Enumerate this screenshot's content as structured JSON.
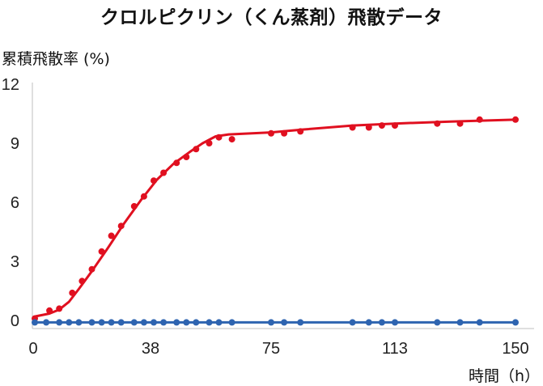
{
  "chart_data": {
    "type": "scatter",
    "title": "クロルピクリン（くん蒸剤）飛散データ",
    "xlabel": "時間（h）",
    "ylabel": "累積飛散率 (%)",
    "xlim": [
      0,
      155
    ],
    "ylim": [
      0,
      12
    ],
    "xticks": [
      0,
      38,
      75,
      113,
      150
    ],
    "yticks": [
      0,
      3,
      6,
      9,
      12
    ],
    "grid": false,
    "series": [
      {
        "color": "#e01020",
        "points": [
          [
            2.5,
            0.1
          ],
          [
            7,
            0.5
          ],
          [
            10,
            0.6
          ],
          [
            14,
            1.4
          ],
          [
            17,
            2.0
          ],
          [
            20,
            2.6
          ],
          [
            23,
            3.5
          ],
          [
            26,
            4.3
          ],
          [
            29,
            4.8
          ],
          [
            33,
            5.8
          ],
          [
            36,
            6.3
          ],
          [
            39,
            7.1
          ],
          [
            42,
            7.5
          ],
          [
            46,
            8.0
          ],
          [
            49,
            8.3
          ],
          [
            52,
            8.7
          ],
          [
            56,
            9.0
          ],
          [
            59,
            9.3
          ],
          [
            63,
            9.2
          ],
          [
            75,
            9.5
          ],
          [
            79,
            9.5
          ],
          [
            84,
            9.6
          ],
          [
            100,
            9.8
          ],
          [
            105,
            9.8
          ],
          [
            109,
            9.9
          ],
          [
            113,
            9.9
          ],
          [
            126,
            10.0
          ],
          [
            133,
            10.0
          ],
          [
            139,
            10.2
          ],
          [
            150,
            10.2
          ]
        ],
        "fit": [
          [
            2.5,
            0.2
          ],
          [
            7,
            0.35
          ],
          [
            10,
            0.55
          ],
          [
            13,
            0.95
          ],
          [
            16,
            1.6
          ],
          [
            20,
            2.5
          ],
          [
            25,
            3.7
          ],
          [
            30,
            4.95
          ],
          [
            35,
            6.1
          ],
          [
            40,
            7.15
          ],
          [
            45,
            7.95
          ],
          [
            50,
            8.55
          ],
          [
            54,
            9.0
          ],
          [
            58,
            9.35
          ],
          [
            62,
            9.45
          ],
          [
            75,
            9.55
          ],
          [
            85,
            9.7
          ],
          [
            100,
            9.9
          ],
          [
            113,
            10.0
          ],
          [
            130,
            10.1
          ],
          [
            150,
            10.2
          ]
        ]
      },
      {
        "color": "#2e64b0",
        "points": [
          [
            2.5,
            -0.1
          ],
          [
            6,
            -0.1
          ],
          [
            10,
            -0.1
          ],
          [
            13,
            -0.1
          ],
          [
            16,
            -0.1
          ],
          [
            20,
            -0.1
          ],
          [
            23,
            -0.1
          ],
          [
            26,
            -0.1
          ],
          [
            29,
            -0.1
          ],
          [
            33,
            -0.1
          ],
          [
            36,
            -0.1
          ],
          [
            39,
            -0.1
          ],
          [
            42,
            -0.1
          ],
          [
            46,
            -0.1
          ],
          [
            49,
            -0.1
          ],
          [
            52,
            -0.1
          ],
          [
            56,
            -0.1
          ],
          [
            59,
            -0.1
          ],
          [
            63,
            -0.1
          ],
          [
            75,
            -0.1
          ],
          [
            79,
            -0.1
          ],
          [
            84,
            -0.1
          ],
          [
            100,
            -0.1
          ],
          [
            105,
            -0.1
          ],
          [
            109,
            -0.1
          ],
          [
            113,
            -0.1
          ],
          [
            126,
            -0.1
          ],
          [
            133,
            -0.1
          ],
          [
            139,
            -0.1
          ],
          [
            150,
            -0.1
          ]
        ],
        "fit": [
          [
            2.5,
            -0.1
          ],
          [
            150,
            -0.1
          ]
        ]
      }
    ]
  }
}
